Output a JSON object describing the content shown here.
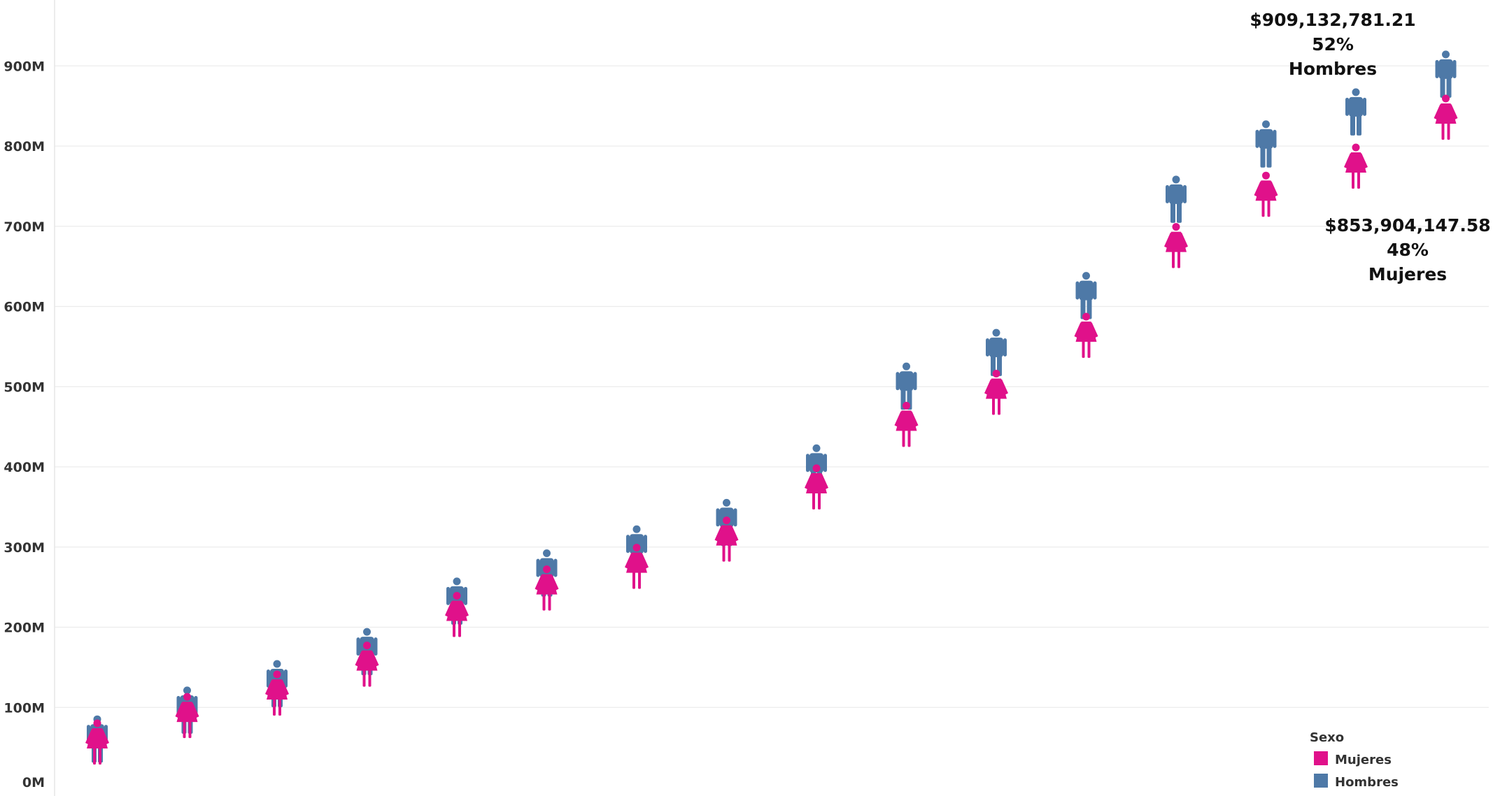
{
  "chart_data": {
    "type": "scatter",
    "title": "",
    "xlabel": "",
    "ylabel": "",
    "ylim": [
      0,
      960
    ],
    "y_ticks": [
      {
        "value": 0,
        "label": "0M"
      },
      {
        "value": 100,
        "label": "100M"
      },
      {
        "value": 200,
        "label": "200M"
      },
      {
        "value": 300,
        "label": "300M"
      },
      {
        "value": 400,
        "label": "400M"
      },
      {
        "value": 500,
        "label": "500M"
      },
      {
        "value": 600,
        "label": "600M"
      },
      {
        "value": 700,
        "label": "700M"
      },
      {
        "value": 800,
        "label": "800M"
      },
      {
        "value": 900,
        "label": "900M"
      }
    ],
    "x": [
      1,
      2,
      3,
      4,
      5,
      6,
      7,
      8,
      9,
      10,
      11,
      12,
      13,
      14,
      15,
      16
    ],
    "series": [
      {
        "name": "Hombres",
        "color": "#4e79a7",
        "icon": "man-icon",
        "values": [
          80,
          116,
          149,
          189,
          252,
          287,
          317,
          350,
          418,
          520,
          562,
          633,
          753,
          822,
          862,
          909
        ]
      },
      {
        "name": "Mujeres",
        "color": "#e0118a",
        "icon": "woman-icon",
        "values": [
          75,
          108,
          136,
          172,
          234,
          267,
          294,
          328,
          393,
          471,
          511,
          582,
          694,
          758,
          793,
          854
        ]
      }
    ],
    "annotations": [
      {
        "series": "Hombres",
        "lines": [
          "$909,132,781.21",
          "52%",
          "Hombres"
        ]
      },
      {
        "series": "Mujeres",
        "lines": [
          "$853,904,147.58",
          "48%",
          "Mujeres"
        ]
      }
    ],
    "legend": {
      "title": "Sexo",
      "position": "bottom-right",
      "items": [
        {
          "label": "Mujeres",
          "color": "#e0118a"
        },
        {
          "label": "Hombres",
          "color": "#4e79a7"
        }
      ]
    },
    "grid": true
  }
}
